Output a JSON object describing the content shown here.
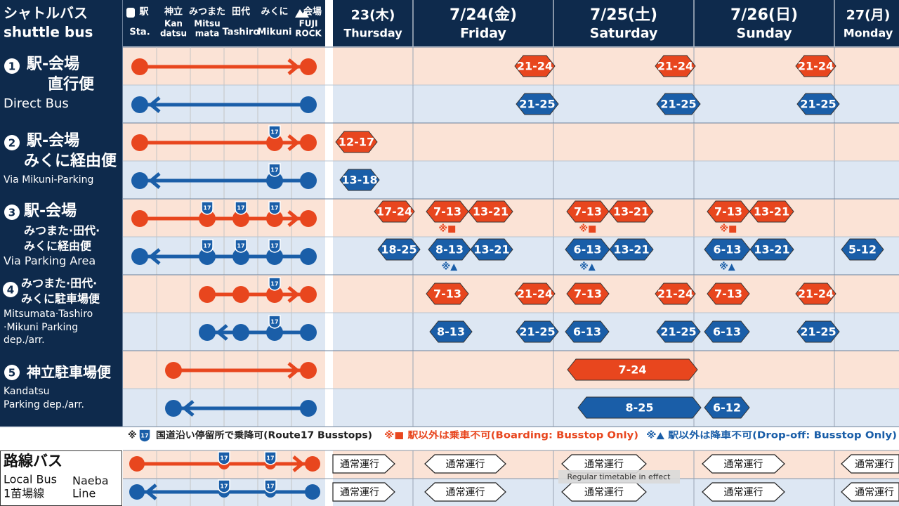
{
  "header": {
    "title_ja": "シャトルバス",
    "title_en": "shuttle bus"
  },
  "stations": [
    {
      "ja": "駅",
      "en": [
        "Sta."
      ]
    },
    {
      "ja": "神立",
      "en": [
        "Kan",
        "datsu"
      ]
    },
    {
      "ja": "みつまた",
      "en": [
        "Mitsu",
        "mata"
      ]
    },
    {
      "ja": "田代",
      "en": [
        "Tashiro"
      ]
    },
    {
      "ja": "みくに",
      "en": [
        "Mikuni"
      ]
    },
    {
      "ja": "会場",
      "en": [
        "FUJI",
        "ROCK"
      ]
    }
  ],
  "days": [
    {
      "date": "23(木)",
      "weekday": "Thursday"
    },
    {
      "date": "7/24(金)",
      "weekday": "Friday"
    },
    {
      "date": "7/25(土)",
      "weekday": "Saturday"
    },
    {
      "date": "7/26(日)",
      "weekday": "Sunday"
    },
    {
      "date": "27(月)",
      "weekday": "Monday"
    }
  ],
  "route_badge": "17",
  "routes": [
    {
      "number": "1",
      "name_ja": [
        "駅-会場",
        "直行便"
      ],
      "name_en": [
        "Direct Bus"
      ],
      "rows": [
        {
          "direction": "outbound",
          "stops": [
            0,
            5
          ],
          "route17": [],
          "trips": [
            {
              "label": "21-24"
            },
            {
              "label": "21-24"
            },
            {
              "label": "21-24"
            }
          ]
        },
        {
          "direction": "inbound",
          "stops": [
            0,
            5
          ],
          "route17": [],
          "trips": [
            {
              "label": "21-25"
            },
            {
              "label": "21-25"
            },
            {
              "label": "21-25"
            }
          ]
        }
      ]
    },
    {
      "number": "2",
      "name_ja": [
        "駅-会場",
        "みくに経由便"
      ],
      "name_en": [
        "Via Mikuni-Parking"
      ],
      "rows": [
        {
          "direction": "outbound",
          "stops": [
            0,
            4,
            5
          ],
          "route17": [
            4
          ],
          "trips": [
            {
              "label": "12-17"
            }
          ]
        },
        {
          "direction": "inbound",
          "stops": [
            0,
            4,
            5
          ],
          "route17": [
            4
          ],
          "trips": [
            {
              "label": "13-18"
            }
          ]
        }
      ]
    },
    {
      "number": "3",
      "name_ja": [
        "駅-会場",
        "みつまた·田代·",
        "みくに経由便"
      ],
      "name_en": [
        "Via Parking Area"
      ],
      "rows": [
        {
          "direction": "outbound",
          "stops": [
            0,
            2,
            3,
            4,
            5
          ],
          "route17": [
            2,
            3,
            4
          ],
          "trips": [
            {
              "label": "17-24"
            },
            {
              "label": "7-13",
              "note": "※■"
            },
            {
              "label": "13-21"
            },
            {
              "label": "7-13",
              "note": "※■"
            },
            {
              "label": "13-21"
            },
            {
              "label": "7-13",
              "note": "※■"
            },
            {
              "label": "13-21"
            }
          ]
        },
        {
          "direction": "inbound",
          "stops": [
            0,
            2,
            3,
            4,
            5
          ],
          "route17": [
            2,
            3,
            4
          ],
          "trips": [
            {
              "label": "18-25"
            },
            {
              "label": "8-13",
              "note": "※▲"
            },
            {
              "label": "13-21"
            },
            {
              "label": "6-13",
              "note": "※▲"
            },
            {
              "label": "13-21"
            },
            {
              "label": "6-13",
              "note": "※▲"
            },
            {
              "label": "13-21"
            },
            {
              "label": "5-12"
            }
          ]
        }
      ]
    },
    {
      "number": "4",
      "name_ja": [
        "みつまた·田代·",
        "みくに駐車場便"
      ],
      "name_en": [
        "Mitsumata·Tashiro",
        "·Mikuni Parking",
        "dep./arr."
      ],
      "rows": [
        {
          "direction": "outbound",
          "stops": [
            2,
            3,
            4,
            5
          ],
          "route17": [
            4
          ],
          "trips": [
            {
              "label": "7-13"
            },
            {
              "label": "21-24"
            },
            {
              "label": "7-13"
            },
            {
              "label": "21-24"
            },
            {
              "label": "7-13"
            },
            {
              "label": "21-24"
            }
          ]
        },
        {
          "direction": "inbound",
          "stops": [
            2,
            3,
            4,
            5
          ],
          "route17": [
            4
          ],
          "trips": [
            {
              "label": "8-13"
            },
            {
              "label": "21-25"
            },
            {
              "label": "6-13"
            },
            {
              "label": "21-25"
            },
            {
              "label": "6-13"
            },
            {
              "label": "21-25"
            }
          ]
        }
      ]
    },
    {
      "number": "5",
      "name_ja": [
        "神立駐車場便"
      ],
      "name_en": [
        "Kandatsu",
        "Parking dep./arr."
      ],
      "rows": [
        {
          "direction": "outbound",
          "stops": [
            1,
            5
          ],
          "route17": [],
          "trips": [
            {
              "label": "7-24"
            }
          ]
        },
        {
          "direction": "inbound",
          "stops": [
            1,
            5
          ],
          "route17": [],
          "trips": [
            {
              "label": "8-25"
            },
            {
              "label": "6-12"
            }
          ]
        }
      ]
    }
  ],
  "notes": {
    "mark": "※",
    "route17": "国道沿い停留所で乗降可(Route17 Busstops)",
    "boarding": "※■ 駅以外は乗車不可(Boarding: Busstop Only)",
    "dropoff": "※▲ 駅以外は降車不可(Drop-off: Busstop Only)"
  },
  "local_bus": {
    "name_ja": "路線バス",
    "name_en": "Local Bus",
    "line_ja": "1苗場線",
    "line_en": [
      "Naeba",
      "Line"
    ],
    "rows": [
      {
        "direction": "outbound",
        "trips": [
          "通常運行",
          "通常運行",
          "通常運行",
          "通常運行",
          "通常運行"
        ]
      },
      {
        "direction": "inbound",
        "trips": [
          "通常運行",
          "通常運行",
          "通常運行",
          "通常運行",
          "通常運行"
        ]
      }
    ],
    "overlay": "Regular timetable in effect"
  }
}
